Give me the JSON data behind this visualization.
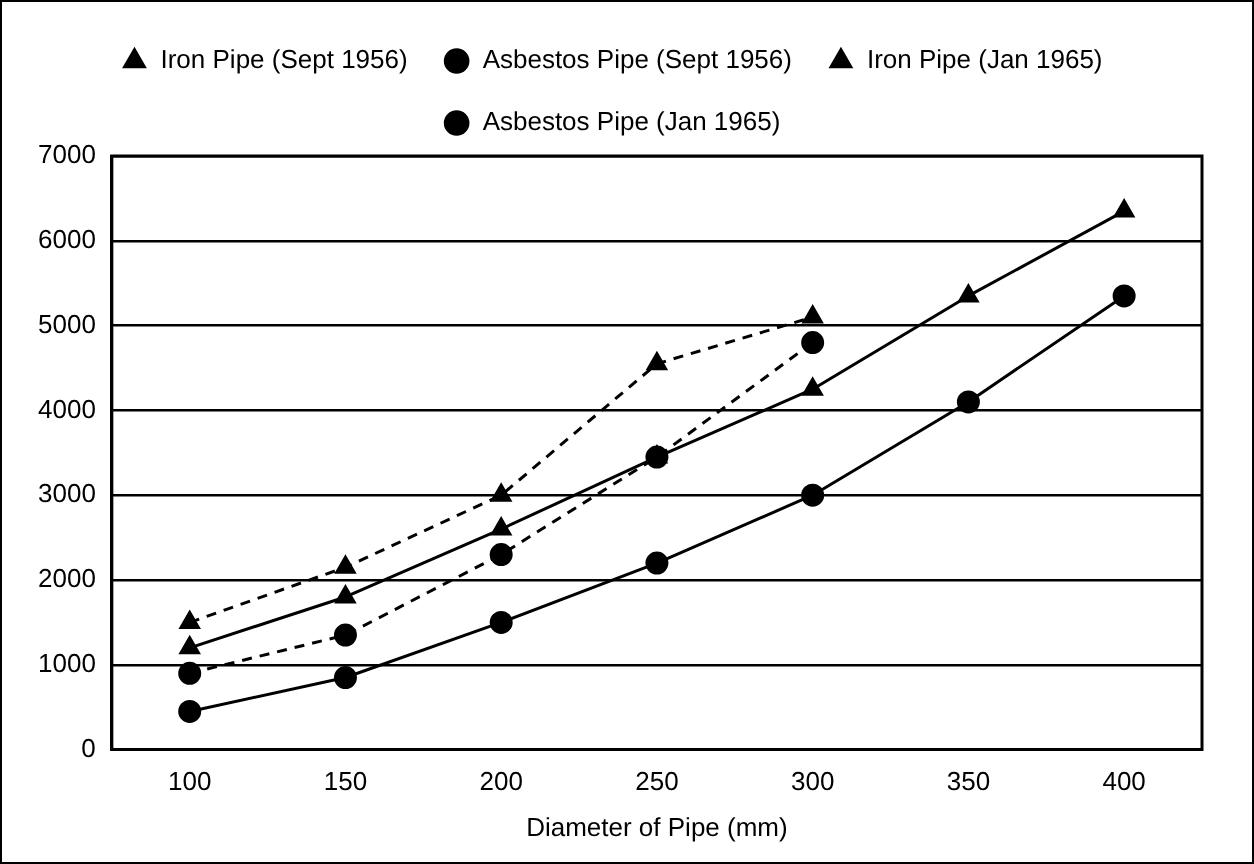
{
  "chart_data": {
    "type": "line",
    "xlabel": "Diameter of Pipe (mm)",
    "categories": [
      "100",
      "150",
      "200",
      "250",
      "300",
      "350",
      "400"
    ],
    "series": [
      {
        "name": "Iron Pipe (Sept 1956)",
        "color": "#000000",
        "marker": "triangle",
        "line_style": "dashed",
        "values": [
          1500,
          2150,
          3000,
          4550,
          5100,
          null,
          null
        ]
      },
      {
        "name": "Asbestos Pipe (Sept 1956)",
        "color": "#000000",
        "marker": "circle",
        "line_style": "dashed",
        "values": [
          900,
          1350,
          2300,
          3450,
          4800,
          null,
          null
        ]
      },
      {
        "name": "Iron Pipe (Jan 1965)",
        "color": "#000000",
        "marker": "triangle",
        "line_style": "solid",
        "values": [
          1200,
          1800,
          2600,
          3450,
          4250,
          5350,
          6350
        ]
      },
      {
        "name": "Asbestos Pipe (Jan 1965)",
        "color": "#000000",
        "marker": "circle",
        "line_style": "solid",
        "values": [
          450,
          850,
          1500,
          2200,
          3000,
          4100,
          5350
        ]
      }
    ],
    "ylim": [
      0,
      7000
    ],
    "yticks": [
      0,
      1000,
      2000,
      3000,
      4000,
      5000,
      6000,
      7000
    ],
    "grid": "y",
    "legend": "top"
  }
}
